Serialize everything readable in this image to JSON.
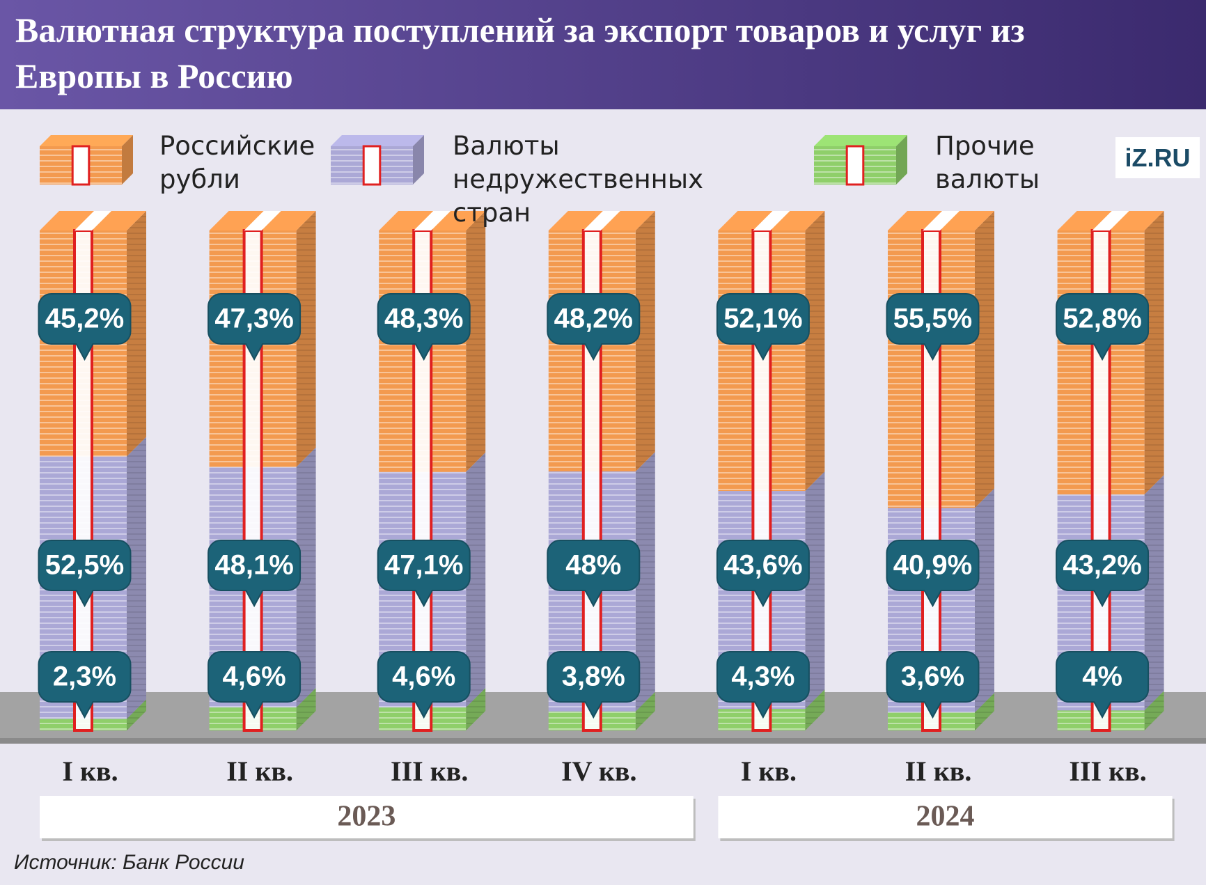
{
  "chart_data": {
    "type": "stacked_bar",
    "title": "Валютная структура поступлений за экспорт товаров и услуг из Европы в Россию",
    "categories": [
      "I кв.",
      "II кв.",
      "III кв.",
      "IV кв.",
      "I кв.",
      "II кв.",
      "III кв."
    ],
    "category_groups": [
      "2023",
      "2023",
      "2023",
      "2023",
      "2024",
      "2024",
      "2024"
    ],
    "ylim": [
      0,
      100
    ],
    "series": [
      {
        "name": "Российские рубли",
        "color": "#f39a4f",
        "values": [
          45.2,
          47.3,
          48.3,
          48.2,
          52.1,
          55.5,
          52.8
        ],
        "value_labels": [
          "45,2%",
          "47,3%",
          "48,3%",
          "48,2%",
          "52,1%",
          "55,5%",
          "52,8%"
        ]
      },
      {
        "name": "Валюты недружественных стран",
        "color": "#aba8d6",
        "values": [
          52.5,
          48.1,
          47.1,
          48,
          43.6,
          40.9,
          43.2
        ],
        "value_labels": [
          "52,5%",
          "48,1%",
          "47,1%",
          "48%",
          "43,6%",
          "40,9%",
          "43,2%"
        ]
      },
      {
        "name": "Прочие валюты",
        "color": "#8fcf6a",
        "values": [
          2.3,
          4.6,
          4.6,
          3.8,
          4.3,
          3.6,
          4
        ],
        "value_labels": [
          "2,3%",
          "4,6%",
          "4,6%",
          "3,8%",
          "4,3%",
          "3,6%",
          "4%"
        ]
      }
    ],
    "source": "Источник: Банк России",
    "logo": "iZ.RU"
  }
}
